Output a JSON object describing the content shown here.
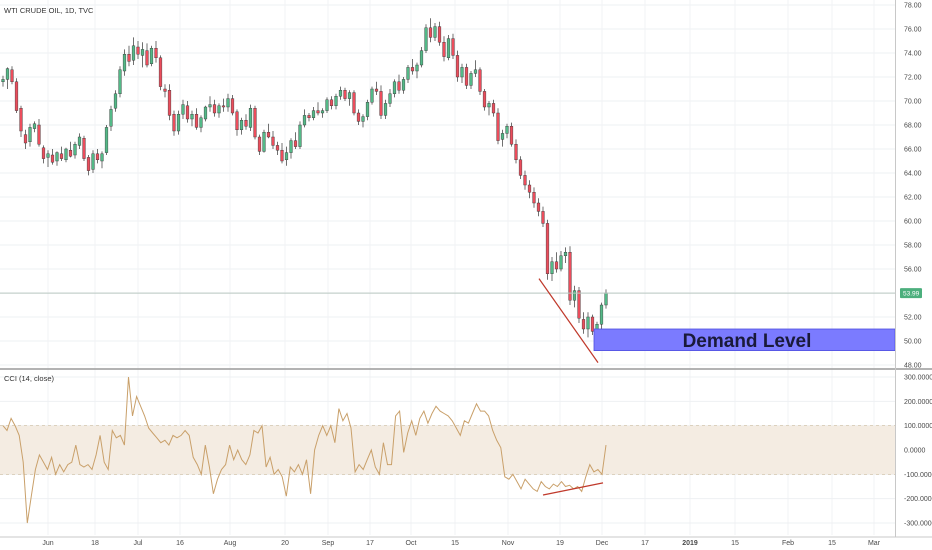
{
  "chart_data": [
    {
      "type": "candlestick",
      "title": "WTI CRUDE OIL, 1D, TVC",
      "y_ticks": [
        "78.00",
        "76.00",
        "74.00",
        "72.00",
        "70.00",
        "68.00",
        "66.00",
        "64.00",
        "62.00",
        "60.00",
        "58.00",
        "56.00",
        "54.00",
        "52.00",
        "50.00",
        "48.00"
      ],
      "ylim": [
        48,
        78
      ],
      "last_price": "53.99",
      "x_ticks": [
        "Jun",
        "18",
        "Jul",
        "16",
        "Aug",
        "20",
        "Sep",
        "17",
        "Oct",
        "15",
        "Nov",
        "19",
        "Dec",
        "17",
        "2019",
        "15",
        "Feb",
        "15",
        "Mar"
      ],
      "grid": true,
      "colors": {
        "up": "#53b987",
        "down": "#eb4d5c",
        "wick": "#333333"
      },
      "annotations": {
        "demand_zone": {
          "label": "Demand Level",
          "low": 49.2,
          "high": 51.0,
          "color": "#7b7bff"
        },
        "trend_line": {
          "from": 55.2,
          "to": 48.2,
          "color": "#c0392b"
        }
      },
      "candles": [
        [
          71.6,
          72.1,
          71.2,
          71.8
        ],
        [
          71.8,
          72.8,
          71.0,
          72.7
        ],
        [
          72.6,
          72.9,
          71.4,
          71.6
        ],
        [
          71.6,
          71.9,
          69.0,
          69.2
        ],
        [
          69.4,
          69.6,
          67.0,
          67.5
        ],
        [
          67.2,
          67.6,
          66.0,
          66.5
        ],
        [
          66.6,
          68.1,
          66.2,
          67.8
        ],
        [
          67.7,
          68.3,
          67.4,
          68.1
        ],
        [
          68.0,
          68.5,
          66.2,
          66.4
        ],
        [
          66.1,
          66.3,
          64.8,
          65.2
        ],
        [
          65.3,
          65.9,
          64.5,
          65.6
        ],
        [
          65.5,
          66.0,
          64.7,
          64.9
        ],
        [
          65.0,
          65.8,
          64.6,
          65.7
        ],
        [
          65.6,
          66.2,
          65.0,
          65.2
        ],
        [
          65.1,
          66.1,
          64.9,
          66.0
        ],
        [
          65.9,
          66.6,
          65.3,
          65.4
        ],
        [
          65.5,
          66.6,
          65.2,
          66.4
        ],
        [
          66.3,
          67.3,
          66.0,
          67.0
        ],
        [
          66.9,
          67.1,
          65.0,
          65.2
        ],
        [
          65.3,
          65.5,
          63.8,
          64.2
        ],
        [
          64.3,
          65.9,
          64.0,
          65.6
        ],
        [
          65.6,
          66.0,
          64.8,
          65.1
        ],
        [
          65.0,
          65.8,
          64.4,
          65.6
        ],
        [
          65.7,
          68.0,
          65.5,
          67.8
        ],
        [
          67.9,
          69.6,
          67.5,
          69.3
        ],
        [
          69.4,
          70.9,
          69.1,
          70.6
        ],
        [
          70.6,
          72.9,
          70.3,
          72.6
        ],
        [
          72.5,
          74.3,
          72.1,
          73.9
        ],
        [
          73.9,
          74.6,
          72.9,
          73.3
        ],
        [
          73.4,
          75.3,
          73.0,
          74.6
        ],
        [
          74.5,
          75.0,
          73.5,
          73.9
        ],
        [
          73.8,
          74.9,
          72.8,
          74.3
        ],
        [
          74.2,
          74.8,
          72.8,
          73.0
        ],
        [
          73.1,
          74.6,
          72.9,
          74.4
        ],
        [
          74.4,
          75.0,
          73.2,
          73.6
        ],
        [
          73.6,
          73.8,
          70.9,
          71.2
        ],
        [
          71.0,
          71.4,
          70.3,
          70.8
        ],
        [
          70.9,
          71.4,
          68.4,
          68.8
        ],
        [
          68.9,
          69.2,
          67.1,
          67.5
        ],
        [
          67.5,
          69.2,
          67.2,
          68.9
        ],
        [
          68.9,
          70.1,
          68.5,
          69.7
        ],
        [
          69.6,
          70.0,
          68.2,
          68.5
        ],
        [
          68.5,
          69.2,
          67.9,
          68.9
        ],
        [
          68.9,
          69.4,
          67.6,
          67.8
        ],
        [
          67.8,
          68.8,
          67.4,
          68.6
        ],
        [
          68.5,
          69.6,
          68.3,
          69.5
        ],
        [
          69.5,
          70.4,
          69.1,
          69.7
        ],
        [
          69.7,
          70.1,
          68.7,
          69.0
        ],
        [
          69.0,
          69.8,
          68.6,
          69.6
        ],
        [
          69.6,
          70.2,
          69.1,
          69.5
        ],
        [
          69.5,
          70.6,
          69.1,
          70.2
        ],
        [
          70.2,
          70.5,
          68.8,
          69.0
        ],
        [
          69.1,
          69.3,
          67.1,
          67.6
        ],
        [
          67.6,
          68.6,
          67.2,
          68.4
        ],
        [
          68.4,
          68.9,
          67.6,
          67.9
        ],
        [
          67.8,
          69.7,
          67.5,
          69.4
        ],
        [
          69.4,
          69.6,
          66.8,
          67.0
        ],
        [
          67.0,
          67.2,
          65.5,
          65.8
        ],
        [
          65.8,
          67.6,
          65.7,
          67.4
        ],
        [
          67.4,
          68.1,
          66.9,
          67.0
        ],
        [
          67.0,
          67.5,
          66.0,
          66.3
        ],
        [
          66.3,
          66.6,
          65.5,
          65.9
        ],
        [
          65.9,
          66.5,
          64.8,
          65.0
        ],
        [
          65.1,
          66.2,
          64.6,
          65.7
        ],
        [
          65.7,
          66.9,
          65.2,
          66.7
        ],
        [
          66.7,
          67.4,
          66.0,
          66.2
        ],
        [
          66.2,
          68.3,
          66.0,
          68.0
        ],
        [
          68.0,
          69.3,
          67.8,
          68.8
        ],
        [
          68.8,
          69.0,
          68.3,
          68.6
        ],
        [
          68.6,
          69.5,
          68.4,
          69.2
        ],
        [
          69.2,
          69.9,
          68.8,
          69.0
        ],
        [
          69.0,
          69.4,
          68.6,
          69.2
        ],
        [
          69.2,
          70.3,
          69.0,
          70.1
        ],
        [
          70.1,
          70.4,
          69.3,
          69.6
        ],
        [
          69.6,
          70.6,
          69.3,
          70.4
        ],
        [
          70.4,
          71.2,
          70.1,
          70.9
        ],
        [
          70.9,
          71.1,
          70.0,
          70.2
        ],
        [
          70.2,
          70.9,
          69.6,
          70.7
        ],
        [
          70.7,
          70.9,
          68.8,
          69.0
        ],
        [
          69.0,
          69.3,
          68.0,
          68.3
        ],
        [
          68.3,
          68.9,
          67.8,
          68.7
        ],
        [
          68.7,
          70.1,
          68.4,
          69.9
        ],
        [
          69.9,
          71.2,
          69.7,
          71.0
        ],
        [
          71.0,
          71.6,
          70.5,
          70.8
        ],
        [
          70.8,
          71.3,
          68.5,
          68.8
        ],
        [
          68.8,
          70.1,
          68.5,
          69.8
        ],
        [
          69.8,
          71.0,
          69.5,
          70.6
        ],
        [
          70.6,
          71.8,
          70.3,
          71.6
        ],
        [
          71.6,
          72.2,
          70.6,
          70.9
        ],
        [
          70.9,
          72.0,
          70.6,
          71.8
        ],
        [
          71.8,
          73.0,
          71.5,
          72.8
        ],
        [
          72.8,
          73.5,
          72.2,
          72.5
        ],
        [
          72.5,
          73.2,
          71.9,
          73.0
        ],
        [
          73.0,
          74.5,
          72.8,
          74.2
        ],
        [
          74.2,
          76.4,
          74.0,
          76.1
        ],
        [
          76.1,
          76.9,
          74.9,
          75.3
        ],
        [
          75.3,
          76.5,
          75.0,
          76.2
        ],
        [
          76.2,
          76.6,
          74.6,
          74.9
        ],
        [
          74.9,
          75.4,
          73.3,
          73.7
        ],
        [
          73.6,
          75.5,
          73.4,
          75.2
        ],
        [
          75.2,
          75.6,
          73.5,
          73.8
        ],
        [
          73.8,
          74.2,
          71.6,
          72.0
        ],
        [
          72.0,
          73.1,
          71.5,
          72.8
        ],
        [
          72.8,
          73.1,
          71.0,
          71.3
        ],
        [
          71.3,
          72.5,
          71.0,
          72.3
        ],
        [
          72.3,
          73.4,
          72.0,
          72.6
        ],
        [
          72.6,
          72.8,
          70.5,
          70.8
        ],
        [
          70.8,
          71.0,
          69.2,
          69.5
        ],
        [
          69.5,
          70.0,
          68.8,
          69.8
        ],
        [
          69.8,
          70.1,
          68.7,
          69.0
        ],
        [
          69.0,
          69.4,
          66.4,
          66.7
        ],
        [
          66.8,
          67.6,
          66.2,
          67.3
        ],
        [
          67.3,
          68.1,
          66.9,
          67.9
        ],
        [
          67.9,
          68.2,
          66.2,
          66.4
        ],
        [
          66.4,
          66.8,
          64.8,
          65.1
        ],
        [
          65.1,
          65.4,
          63.5,
          63.8
        ],
        [
          63.8,
          64.2,
          62.6,
          63.0
        ],
        [
          63.0,
          63.4,
          61.9,
          62.4
        ],
        [
          62.4,
          62.8,
          61.1,
          61.5
        ],
        [
          61.5,
          61.9,
          60.4,
          60.8
        ],
        [
          60.8,
          61.2,
          59.5,
          59.8
        ],
        [
          59.8,
          60.1,
          55.1,
          55.6
        ],
        [
          55.6,
          57.0,
          55.0,
          56.6
        ],
        [
          56.6,
          57.4,
          55.7,
          56.0
        ],
        [
          56.0,
          57.5,
          55.8,
          57.1
        ],
        [
          57.1,
          57.8,
          56.5,
          57.4
        ],
        [
          57.4,
          57.9,
          53.0,
          53.4
        ],
        [
          53.4,
          54.6,
          52.8,
          54.2
        ],
        [
          54.2,
          54.5,
          51.5,
          51.9
        ],
        [
          51.8,
          52.4,
          50.6,
          51.0
        ],
        [
          51.0,
          52.4,
          50.3,
          52.0
        ],
        [
          52.0,
          52.2,
          50.5,
          50.8
        ],
        [
          50.8,
          51.6,
          50.3,
          51.4
        ],
        [
          51.4,
          53.2,
          51.0,
          53.0
        ],
        [
          53.0,
          54.3,
          52.7,
          54.0
        ]
      ]
    },
    {
      "type": "line",
      "title": "CCI (14, close)",
      "y_ticks": [
        "300.0000",
        "200.0000",
        "100.0000",
        "0.0000",
        "-100.0000",
        "-200.0000",
        "-300.0000"
      ],
      "ylim": [
        -300,
        300
      ],
      "band": [
        -100,
        100
      ],
      "colors": {
        "line": "#c9a06a",
        "band": "#f4ece2",
        "band_edge": "#c9b89a"
      },
      "trend_line": {
        "from": -185,
        "to": -135,
        "color": "#c0392b"
      },
      "values": [
        100,
        80,
        130,
        100,
        60,
        -50,
        -300,
        -190,
        -80,
        -20,
        -50,
        -80,
        -30,
        -100,
        -60,
        -90,
        -60,
        -50,
        20,
        -60,
        -70,
        -60,
        -80,
        -20,
        60,
        -50,
        -80,
        80,
        50,
        60,
        20,
        300,
        140,
        220,
        180,
        140,
        90,
        70,
        50,
        30,
        40,
        20,
        60,
        50,
        60,
        80,
        60,
        -30,
        -60,
        -100,
        20,
        -70,
        -180,
        -120,
        -80,
        -60,
        20,
        -40,
        0,
        -40,
        -60,
        -20,
        80,
        70,
        100,
        -70,
        -30,
        -100,
        -80,
        -110,
        -190,
        -70,
        -90,
        -60,
        -100,
        -40,
        -180,
        0,
        60,
        100,
        60,
        100,
        30,
        170,
        120,
        150,
        90,
        -90,
        -60,
        -80,
        -40,
        0,
        -70,
        -100,
        30,
        -60,
        -60,
        140,
        160,
        -10,
        70,
        120,
        60,
        130,
        160,
        110,
        150,
        180,
        160,
        150,
        140,
        120,
        90,
        60,
        120,
        110,
        150,
        190,
        160,
        160,
        140,
        80,
        40,
        10,
        -110,
        -120,
        -100,
        -130,
        -160,
        -120,
        -140,
        -160,
        -170,
        -130,
        -150,
        -160,
        -140,
        -150,
        -130,
        -150,
        -145,
        -160,
        -150,
        -170,
        -110,
        -60,
        -90,
        -80,
        -100,
        20
      ]
    }
  ],
  "x_ticks_shared": true
}
